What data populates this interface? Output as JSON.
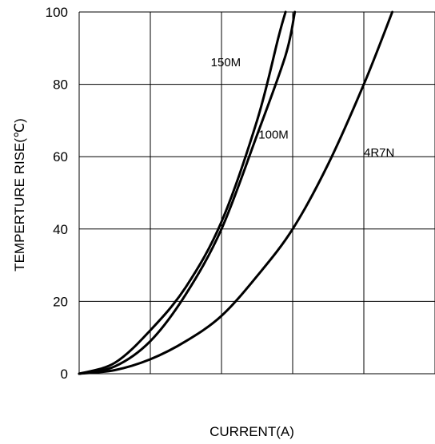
{
  "chart_data": {
    "type": "line",
    "title": "",
    "xlabel": "CURRENT(A)",
    "ylabel": "TEMPERTURE RISE(℃)",
    "ylim": [
      0,
      100
    ],
    "xlim": [
      0,
      5
    ],
    "y_ticks": [
      0,
      20,
      40,
      60,
      80,
      100
    ],
    "x_ticks": [],
    "grid": true,
    "series": [
      {
        "name": "150M",
        "x": [
          0,
          0.5,
          1,
          1.5,
          2,
          2.5,
          2.8,
          2.9
        ],
        "y": [
          0,
          3,
          12,
          24,
          42,
          70,
          93,
          100
        ]
      },
      {
        "name": "100M",
        "x": [
          0,
          0.5,
          1,
          1.5,
          2,
          2.5,
          2.9,
          3.03
        ],
        "y": [
          0,
          2,
          9,
          22,
          40,
          66,
          88,
          100
        ]
      },
      {
        "name": "4R7N",
        "x": [
          0,
          0.5,
          1,
          1.5,
          2,
          2.5,
          3,
          3.5,
          4,
          4.4
        ],
        "y": [
          0,
          1,
          4,
          9,
          16,
          27,
          40,
          58,
          80,
          100
        ]
      }
    ]
  }
}
